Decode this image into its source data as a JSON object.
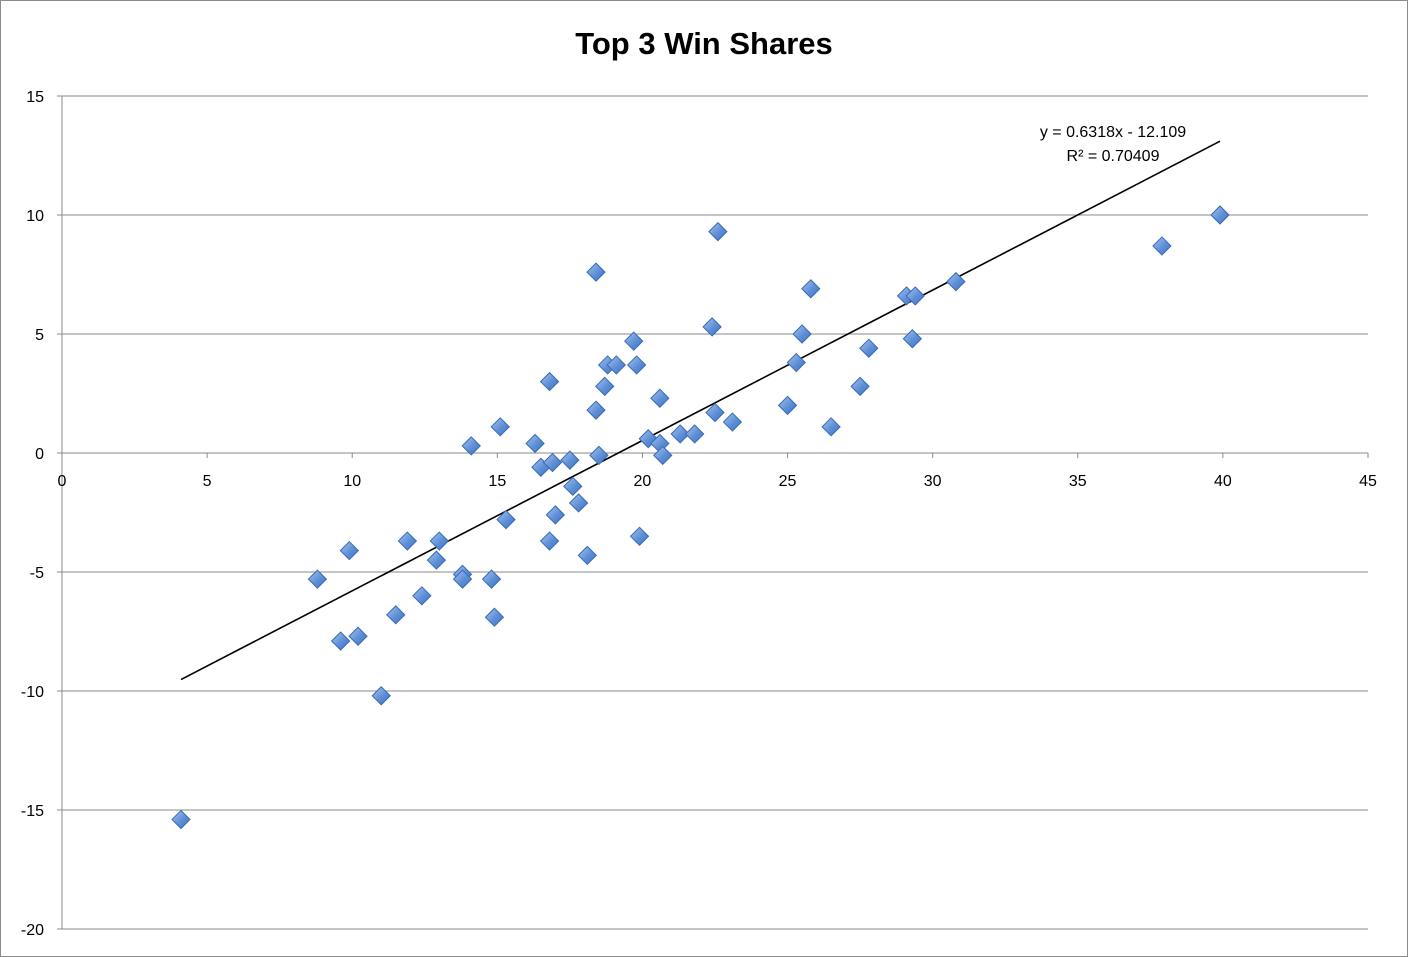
{
  "chart_data": {
    "type": "scatter",
    "title": "Top 3 Win Shares",
    "xlabel": "",
    "ylabel": "",
    "xlim": [
      0,
      45
    ],
    "ylim": [
      -20,
      15
    ],
    "x_ticks": [
      0,
      5,
      10,
      15,
      20,
      25,
      30,
      35,
      40,
      45
    ],
    "y_ticks": [
      15,
      10,
      5,
      0,
      -5,
      -10,
      -15,
      -20
    ],
    "grid": "horizontal",
    "legend": "none",
    "marker": "diamond",
    "marker_color": "#4f81bd",
    "series": [
      {
        "points": [
          [
            4.1,
            -15.4
          ],
          [
            8.8,
            -5.3
          ],
          [
            9.6,
            -7.9
          ],
          [
            9.9,
            -4.1
          ],
          [
            10.2,
            -7.7
          ],
          [
            11.0,
            -10.2
          ],
          [
            11.5,
            -6.8
          ],
          [
            11.9,
            -3.7
          ],
          [
            12.4,
            -6.0
          ],
          [
            12.9,
            -4.5
          ],
          [
            13.0,
            -3.7
          ],
          [
            13.8,
            -5.1
          ],
          [
            13.8,
            -5.3
          ],
          [
            14.1,
            0.3
          ],
          [
            14.8,
            -5.3
          ],
          [
            14.9,
            -6.9
          ],
          [
            15.1,
            1.1
          ],
          [
            15.3,
            -2.8
          ],
          [
            16.3,
            0.4
          ],
          [
            16.5,
            -0.6
          ],
          [
            16.8,
            3.0
          ],
          [
            16.8,
            -3.7
          ],
          [
            16.9,
            -0.4
          ],
          [
            17.0,
            -2.6
          ],
          [
            17.5,
            -0.3
          ],
          [
            17.6,
            -1.4
          ],
          [
            17.8,
            -2.1
          ],
          [
            18.1,
            -4.3
          ],
          [
            18.4,
            7.6
          ],
          [
            18.4,
            1.8
          ],
          [
            18.5,
            -0.1
          ],
          [
            18.7,
            2.8
          ],
          [
            18.8,
            3.7
          ],
          [
            19.1,
            3.7
          ],
          [
            19.7,
            4.7
          ],
          [
            19.8,
            3.7
          ],
          [
            19.9,
            -3.5
          ],
          [
            20.2,
            0.6
          ],
          [
            20.6,
            2.3
          ],
          [
            20.6,
            0.4
          ],
          [
            20.7,
            -0.1
          ],
          [
            21.3,
            0.8
          ],
          [
            21.8,
            0.8
          ],
          [
            22.4,
            5.3
          ],
          [
            22.5,
            1.7
          ],
          [
            22.6,
            9.3
          ],
          [
            23.1,
            1.3
          ],
          [
            25.0,
            2.0
          ],
          [
            25.3,
            3.8
          ],
          [
            25.5,
            5.0
          ],
          [
            25.8,
            6.9
          ],
          [
            26.5,
            1.1
          ],
          [
            27.5,
            2.8
          ],
          [
            27.8,
            4.4
          ],
          [
            29.1,
            6.6
          ],
          [
            29.3,
            4.8
          ],
          [
            29.4,
            6.6
          ],
          [
            30.8,
            7.2
          ],
          [
            37.9,
            8.7
          ],
          [
            39.9,
            10.0
          ]
        ]
      }
    ],
    "trendline": {
      "type": "linear",
      "slope": 0.6318,
      "intercept": -12.109,
      "x_range": [
        4.1,
        39.9
      ],
      "equation_label": "y = 0.6318x - 12.109",
      "r2_label": "R² = 0.70409",
      "color": "#000000"
    }
  }
}
